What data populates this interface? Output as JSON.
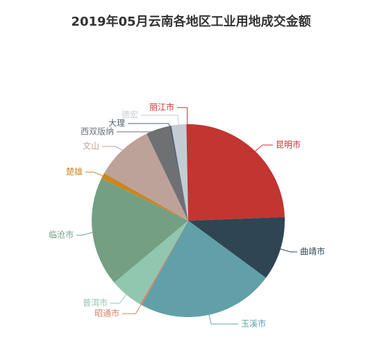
{
  "chart_data": {
    "type": "pie",
    "title": "2019年05月云南各地区工业用地成交金额",
    "categories": [
      "昆明市",
      "曲靖市",
      "玉溪市",
      "昭通市",
      "普洱市",
      "临沧市",
      "楚雄",
      "文山",
      "西双版纳",
      "大理",
      "德宏",
      "丽江市"
    ],
    "values": [
      24.4,
      10.7,
      22.9,
      0.3,
      5.6,
      18.3,
      1.0,
      9.7,
      3.9,
      0.4,
      2.5,
      0.3
    ],
    "colors": [
      "#c23531",
      "#2f4554",
      "#61a0a8",
      "#d48265",
      "#91c7ae",
      "#749f83",
      "#ca8622",
      "#bda29a",
      "#6e7074",
      "#546570",
      "#c4ccd3",
      "#c23531"
    ],
    "legend": "none"
  }
}
